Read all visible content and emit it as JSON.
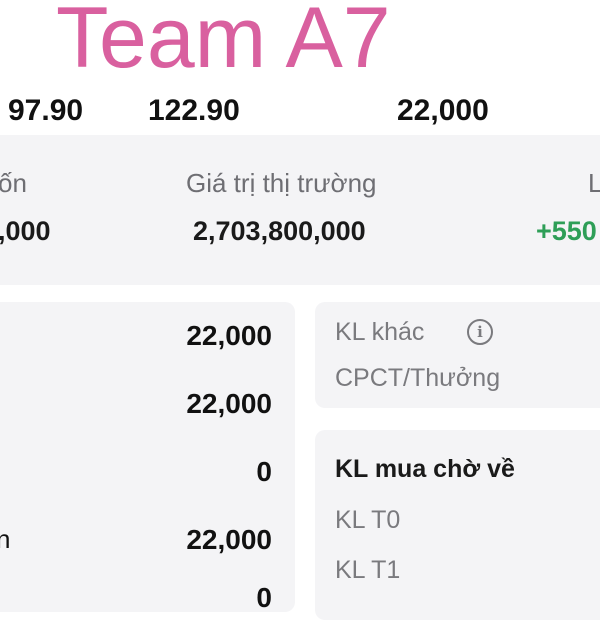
{
  "summary_row": {
    "values": [
      "97.90",
      "122.90",
      "22,000"
    ]
  },
  "portfolio": {
    "cost_label": "ốn",
    "cost_value": ",000",
    "market_value_label": "Giá trị thị trường",
    "market_value": "2,703,800,000",
    "pnl_label": "L",
    "pnl_value": "+550",
    "pnl_color": "#2e9e57"
  },
  "holdings": {
    "values": [
      "22,000",
      "22,000",
      "0",
      "22,000",
      "0"
    ],
    "partial_label": "n"
  },
  "other_volume": {
    "title": "KL khác",
    "info_icon": "info-icon",
    "row": "CPCT/Thưởng"
  },
  "pending_buy": {
    "title": "KL mua chờ về",
    "rows": [
      "KL T0",
      "KL T1"
    ]
  },
  "watermark": "Team A7"
}
